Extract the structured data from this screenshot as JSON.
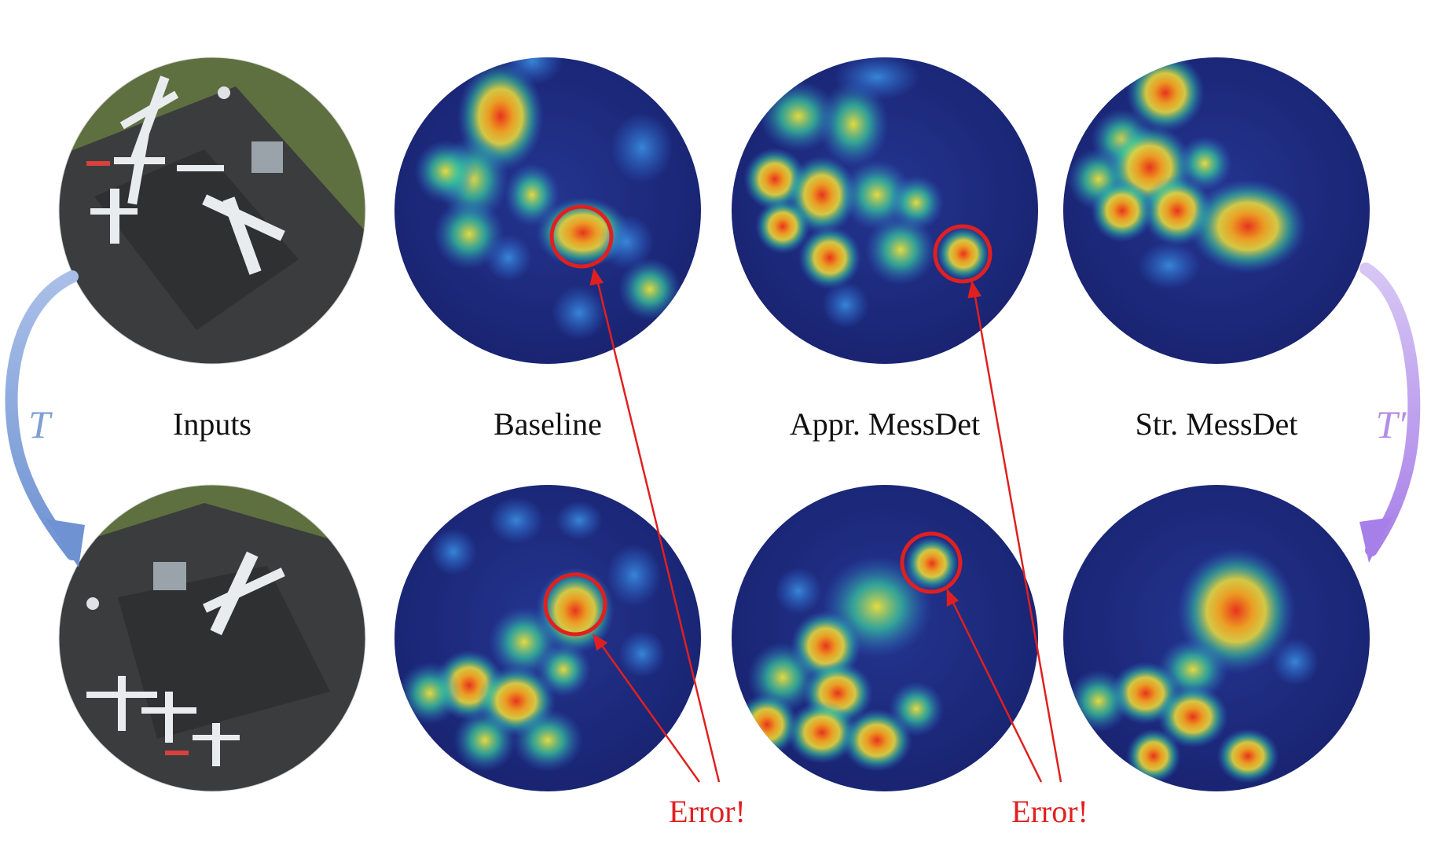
{
  "columns": [
    {
      "id": "inputs",
      "label": "Inputs"
    },
    {
      "id": "baseline",
      "label": "Baseline"
    },
    {
      "id": "appr",
      "label": "Appr. MessDet"
    },
    {
      "id": "str",
      "label": "Str. MessDet"
    }
  ],
  "transforms": {
    "left": {
      "label": "T",
      "color": "#7f9fd4"
    },
    "right": {
      "label": "T′",
      "color": "#b38fe6"
    }
  },
  "errors": {
    "baseline": "Error!",
    "appr": "Error!",
    "color": "#e02020"
  },
  "heatmap_palette": {
    "background": "#1c2a86",
    "low": "#2f6dd8",
    "mid": "#38d0a0",
    "high": "#f2e23a",
    "peak": "#e8331c"
  },
  "input_palette": {
    "grass": "#5f7040",
    "tarmac": "#3b3c3d",
    "planes": "#e8ecef"
  }
}
